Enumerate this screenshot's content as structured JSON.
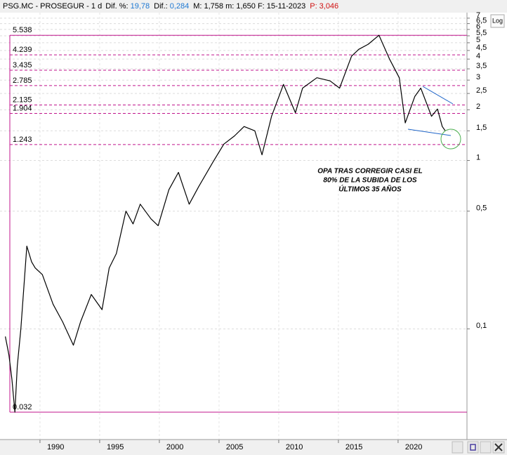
{
  "chart_data": {
    "type": "line",
    "header": {
      "symbol": "PSG.MC - PROSEGUR - ",
      "period": "1 d",
      "dif_pct_label": "Dif. %:",
      "dif_pct": "19,78",
      "dif_label": "Dif.:",
      "dif": "0,284",
      "stats": "M: 1,758  m: 1,650  F: 15-11-2023",
      "price_label": "P:",
      "price": "3,046"
    },
    "log_button": "Log",
    "annotation": [
      "OPA TRAS CORREGIR CASI EL",
      "80% DE LA SUBIDA DE LOS",
      "ÚLTIMOS 35 AÑOS"
    ],
    "log_scale": true,
    "grid": true,
    "xlim": [
      1986.65,
      2025.77
    ],
    "ylim": [
      0.022,
      7.55
    ],
    "xticks": [
      1990,
      1995,
      2000,
      2005,
      2010,
      2015,
      2020
    ],
    "yticks": [
      {
        "value": 0.1,
        "label": "0,1"
      },
      {
        "value": 0.5,
        "label": "0,5"
      },
      1,
      {
        "value": 1.5,
        "label": "1,5"
      },
      2,
      {
        "value": 2.5,
        "label": "2,5"
      },
      3,
      {
        "value": 3.5,
        "label": "3,5"
      },
      4,
      {
        "value": 4.5,
        "label": "4,5"
      },
      5,
      {
        "value": 5.5,
        "label": "5,5"
      },
      6,
      {
        "value": 6.5,
        "label": "6,5"
      },
      7
    ],
    "levels": [
      {
        "value": 5.538,
        "label": "5.538",
        "dashed": false
      },
      {
        "value": 4.239,
        "label": "4.239",
        "dashed": true
      },
      {
        "value": 3.435,
        "label": "3.435",
        "dashed": true
      },
      {
        "value": 2.785,
        "label": "2.785",
        "dashed": true
      },
      {
        "value": 2.135,
        "label": "2.135",
        "dashed": true
      },
      {
        "value": 1.904,
        "label": "1.904",
        "dashed": true
      },
      {
        "value": 1.243,
        "label": "1.243",
        "dashed": true
      },
      {
        "value": 0.032,
        "label": "0.032",
        "dashed": false
      }
    ],
    "level_color": "#c0148c",
    "series": [
      {
        "color": "#000000",
        "x": [
          1987.1,
          1987.4,
          1987.65,
          1987.9,
          1988.1,
          1988.4,
          1988.9,
          1989.3,
          1989.6,
          1990.2,
          1991.1,
          1991.9,
          1992.8,
          1993.4,
          1994.3,
          1995.2,
          1995.8,
          1996.4,
          1997.2,
          1997.8,
          1998.4,
          1999.3,
          1999.9,
          2000.8,
          2001.6,
          2002.5,
          2003.3,
          2004.5,
          2005.4,
          2006.3,
          2007.1,
          2008.0,
          2008.6,
          2009.4,
          2010.4,
          2011.4,
          2012.0,
          2013.2,
          2014.3,
          2015.1,
          2016.1,
          2016.7,
          2017.5,
          2018.4,
          2019.3,
          2020.1,
          2020.6,
          2021.4,
          2021.9,
          2022.8,
          2023.3,
          2023.7,
          2023.95
        ],
        "values": [
          0.09,
          0.07,
          0.05,
          0.032,
          0.06,
          0.1,
          0.31,
          0.25,
          0.23,
          0.21,
          0.14,
          0.11,
          0.08,
          0.11,
          0.16,
          0.13,
          0.23,
          0.28,
          0.5,
          0.42,
          0.55,
          0.45,
          0.41,
          0.67,
          0.85,
          0.55,
          0.7,
          0.98,
          1.25,
          1.4,
          1.59,
          1.5,
          1.08,
          1.83,
          2.83,
          1.92,
          2.69,
          3.1,
          2.97,
          2.69,
          4.16,
          4.57,
          4.9,
          5.54,
          3.98,
          3.1,
          1.67,
          2.4,
          2.69,
          1.83,
          2.02,
          1.59,
          1.5
        ]
      }
    ]
  }
}
